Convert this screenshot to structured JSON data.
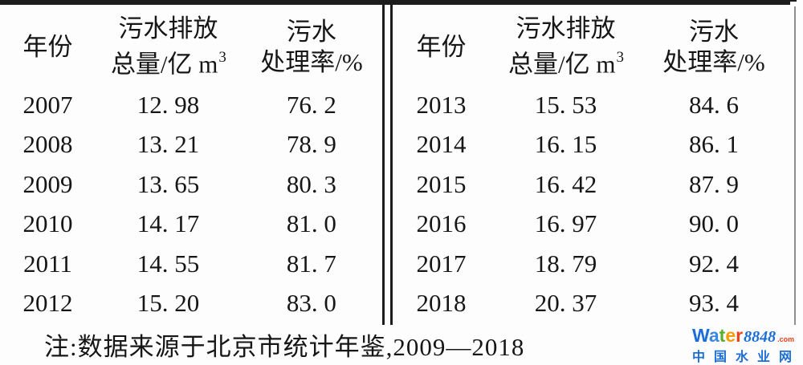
{
  "table": {
    "header": {
      "year": "年份",
      "discharge_line1": "污水排放",
      "discharge_line2_base": "总量/亿 m",
      "discharge_superscript": "3",
      "rate_line1": "污水",
      "rate_line2": "处理率/%"
    },
    "left_rows": [
      {
        "year": "2007",
        "discharge": "12. 98",
        "rate": "76. 2"
      },
      {
        "year": "2008",
        "discharge": "13. 21",
        "rate": "78. 9"
      },
      {
        "year": "2009",
        "discharge": "13. 65",
        "rate": "80. 3"
      },
      {
        "year": "2010",
        "discharge": "14. 17",
        "rate": "81. 0"
      },
      {
        "year": "2011",
        "discharge": "14. 55",
        "rate": "81. 7"
      },
      {
        "year": "2012",
        "discharge": "15. 20",
        "rate": "83. 0"
      }
    ],
    "right_rows": [
      {
        "year": "2013",
        "discharge": "15. 53",
        "rate": "84. 6"
      },
      {
        "year": "2014",
        "discharge": "16. 15",
        "rate": "86. 1"
      },
      {
        "year": "2015",
        "discharge": "16. 42",
        "rate": "87. 9"
      },
      {
        "year": "2016",
        "discharge": "16. 97",
        "rate": "90. 0"
      },
      {
        "year": "2017",
        "discharge": "18. 79",
        "rate": "92. 4"
      },
      {
        "year": "2018",
        "discharge": "20. 37",
        "rate": "93. 4"
      }
    ]
  },
  "note": "注:数据来源于北京市统计年鉴,2009—2018",
  "watermark": {
    "brand_letters": [
      {
        "ch": "W",
        "color": "#1b6ed8"
      },
      {
        "ch": "a",
        "color": "#3b8ae0"
      },
      {
        "ch": "t",
        "color": "#55b02f"
      },
      {
        "ch": "e",
        "color": "#f59b00"
      },
      {
        "ch": "r",
        "color": "#e8401c"
      }
    ],
    "brand_number": "8848",
    "brand_domain": ".com",
    "line2": "中国水业网",
    "colors": {
      "blue": "#1b6ed8",
      "red": "#e8401c"
    }
  }
}
